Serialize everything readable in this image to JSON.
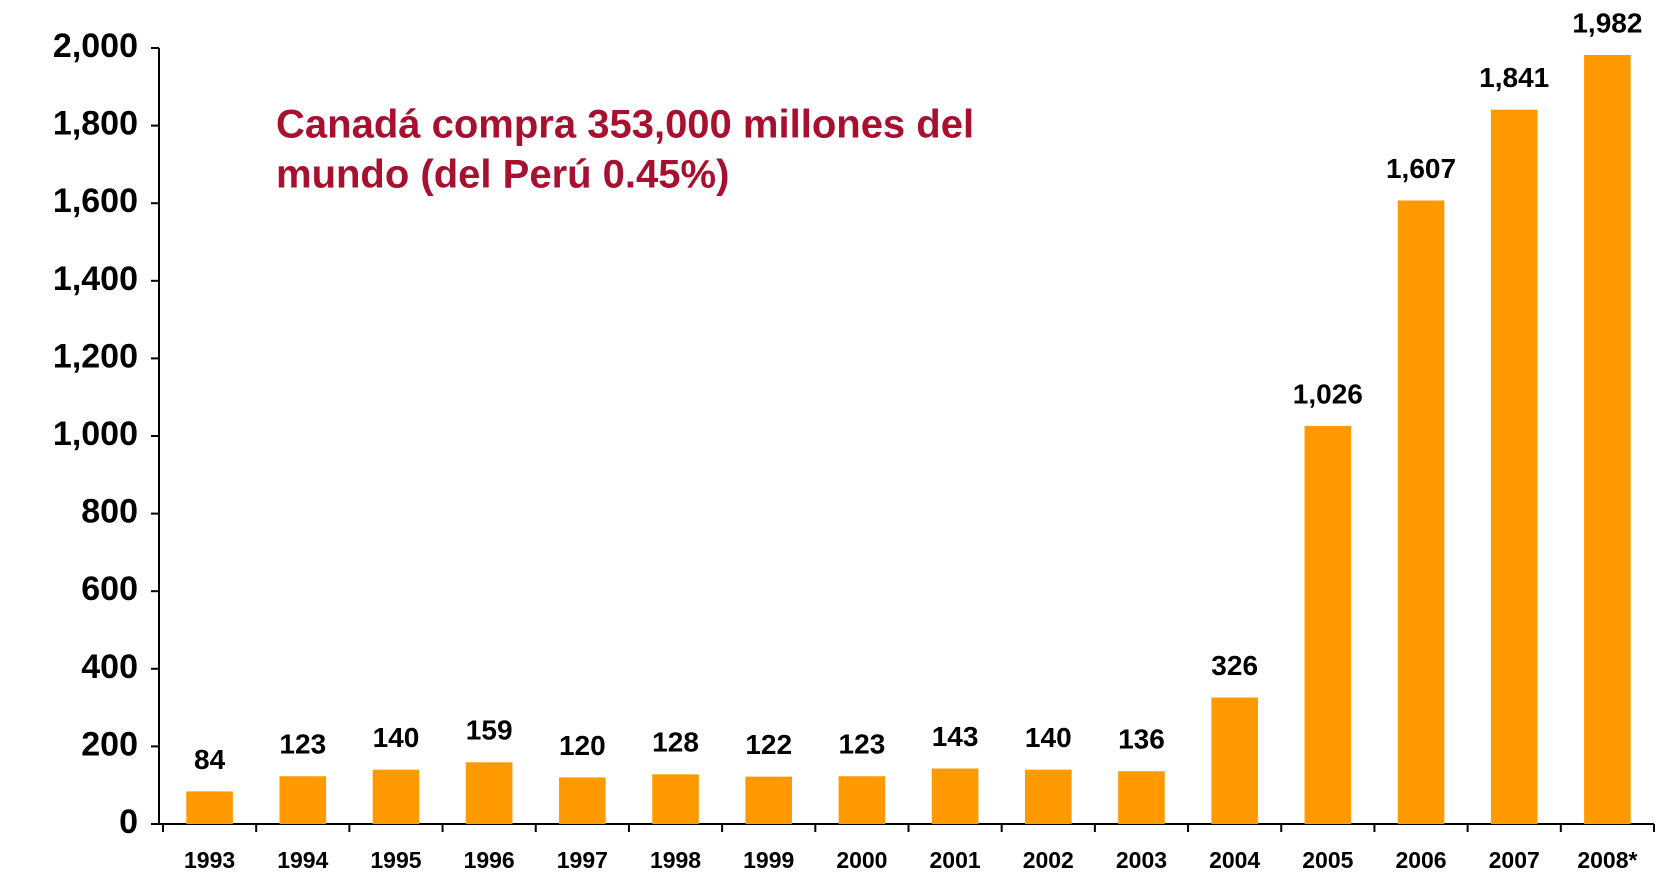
{
  "chart_data": {
    "type": "bar",
    "annotation": [
      "Canadá compra 353,000 millones del",
      "mundo (del Perú 0.45%)"
    ],
    "categories": [
      "1993",
      "1994",
      "1995",
      "1996",
      "1997",
      "1998",
      "1999",
      "2000",
      "2001",
      "2002",
      "2003",
      "2004",
      "2005",
      "2006",
      "2007",
      "2008*"
    ],
    "values": [
      84,
      123,
      140,
      159,
      120,
      128,
      122,
      123,
      143,
      140,
      136,
      326,
      1026,
      1607,
      1841,
      1982
    ],
    "value_labels": [
      "84",
      "123",
      "140",
      "159",
      "120",
      "128",
      "122",
      "123",
      "143",
      "140",
      "136",
      "326",
      "1,026",
      "1,607",
      "1,841",
      "1,982"
    ],
    "color": "#ff9900",
    "annotation_color": "#a8102f",
    "ylim": [
      0,
      2000
    ],
    "yticks": [
      0,
      200,
      400,
      600,
      800,
      {
        "value": 1000,
        "label": "1,000"
      },
      {
        "value": 1200,
        "label": "1,200"
      },
      {
        "value": 1400,
        "label": "1,400"
      },
      {
        "value": 1600,
        "label": "1,600"
      },
      {
        "value": 1800,
        "label": "1,800"
      },
      {
        "value": 2000,
        "label": "2,000"
      }
    ],
    "grid": false
  }
}
